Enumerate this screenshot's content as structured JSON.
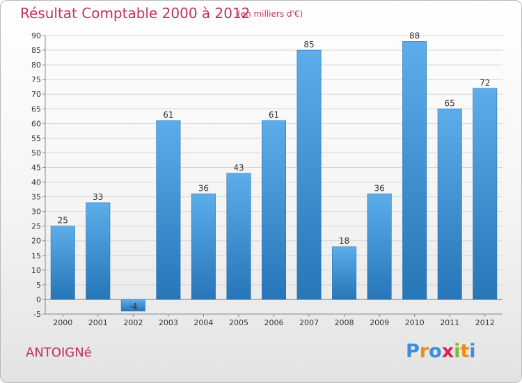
{
  "header": {
    "title": "Résultat Comptable 2000 à 2012",
    "subtitle": "(en milliers d'€)"
  },
  "commune": "ANTOIGNé",
  "logo": {
    "letters": [
      "P",
      "r",
      "o",
      "x",
      "i",
      "t",
      "i"
    ],
    "colors": [
      "#3a8fd8",
      "#f08a1c",
      "#3a8fd8",
      "#d9244e",
      "#7dbb2a",
      "#f08a1c",
      "#3a8fd8"
    ]
  },
  "colors": {
    "title": "#c1305a",
    "bar_light": "#5dadeb",
    "bar_dark": "#2676b8",
    "grid": "#d6d6d6"
  },
  "chart_data": {
    "type": "bar",
    "categories": [
      "2000",
      "2001",
      "2002",
      "2003",
      "2004",
      "2005",
      "2006",
      "2007",
      "2008",
      "2009",
      "2010",
      "2011",
      "2012"
    ],
    "values": [
      25,
      33,
      -4,
      61,
      36,
      43,
      61,
      85,
      18,
      36,
      88,
      65,
      72
    ],
    "value_labels": [
      "25",
      "33",
      "-4",
      "61",
      "36",
      "43",
      "61",
      "85",
      "18",
      "36",
      "88",
      "65",
      "72"
    ],
    "ylim": [
      -5,
      90
    ],
    "yticks": [
      -5,
      0,
      5,
      10,
      15,
      20,
      25,
      30,
      35,
      40,
      45,
      50,
      55,
      60,
      65,
      70,
      75,
      80,
      85,
      90
    ],
    "grid": true,
    "xlabel": "",
    "ylabel": ""
  }
}
